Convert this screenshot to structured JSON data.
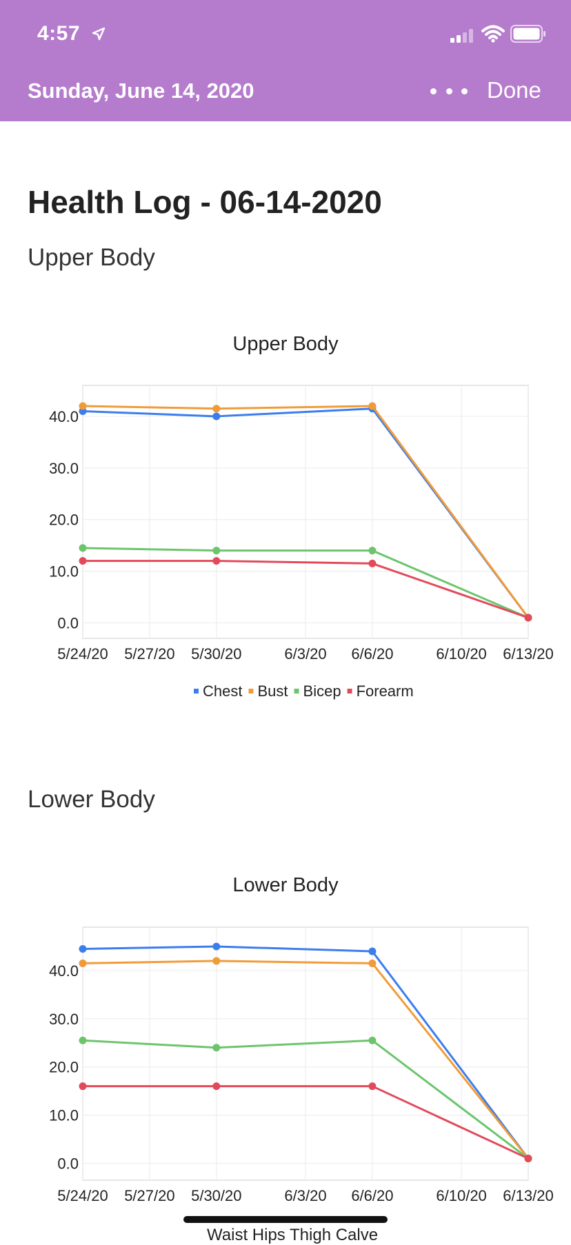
{
  "status_bar": {
    "time": "4:57"
  },
  "nav": {
    "date": "Sunday, June 14, 2020",
    "done_label": "Done"
  },
  "page": {
    "title": "Health Log - 06-14-2020",
    "sections": [
      "Upper Body",
      "Lower Body"
    ]
  },
  "colors": {
    "header": "#b57bcc",
    "blue": "#3b7ded",
    "orange": "#f19b38",
    "green": "#6cc56c",
    "red": "#e24a5a"
  },
  "chart_data": [
    {
      "type": "line",
      "title": "Upper Body",
      "x_ticks": [
        "5/24/20",
        "5/27/20",
        "5/30/20",
        "6/3/20",
        "6/6/20",
        "6/10/20",
        "6/13/20"
      ],
      "x": [
        "5/24/20",
        "5/30/20",
        "6/6/20",
        "6/13/20"
      ],
      "y_ticks": [
        "0.0",
        "10.0",
        "20.0",
        "30.0",
        "40.0"
      ],
      "ylim": [
        -3,
        46
      ],
      "grid": true,
      "legend_position": "bottom",
      "series": [
        {
          "name": "Chest",
          "color": "#3b7ded",
          "values": [
            41.0,
            40.0,
            41.5,
            1.0
          ]
        },
        {
          "name": "Bust",
          "color": "#f19b38",
          "values": [
            42.0,
            41.5,
            42.0,
            1.0
          ]
        },
        {
          "name": "Bicep",
          "color": "#6cc56c",
          "values": [
            14.5,
            14.0,
            14.0,
            1.0
          ]
        },
        {
          "name": "Forearm",
          "color": "#e24a5a",
          "values": [
            12.0,
            12.0,
            11.5,
            1.0
          ]
        }
      ]
    },
    {
      "type": "line",
      "title": "Lower Body",
      "x_ticks": [
        "5/24/20",
        "5/27/20",
        "5/30/20",
        "6/3/20",
        "6/6/20",
        "6/10/20",
        "6/13/20"
      ],
      "x": [
        "5/24/20",
        "5/30/20",
        "6/6/20",
        "6/13/20"
      ],
      "y_ticks": [
        "0.0",
        "10.0",
        "20.0",
        "30.0",
        "40.0"
      ],
      "ylim": [
        -3.5,
        49
      ],
      "grid": true,
      "legend_position": "bottom",
      "legend_partial_text": "Waist   Hips   Thigh   Calve",
      "series": [
        {
          "color": "#3b7ded",
          "values": [
            44.5,
            45.0,
            44.0,
            1.0
          ]
        },
        {
          "color": "#f19b38",
          "values": [
            41.5,
            42.0,
            41.5,
            1.0
          ]
        },
        {
          "color": "#6cc56c",
          "values": [
            25.5,
            24.0,
            25.5,
            1.0
          ]
        },
        {
          "color": "#e24a5a",
          "values": [
            16.0,
            16.0,
            16.0,
            1.0
          ]
        }
      ]
    }
  ]
}
